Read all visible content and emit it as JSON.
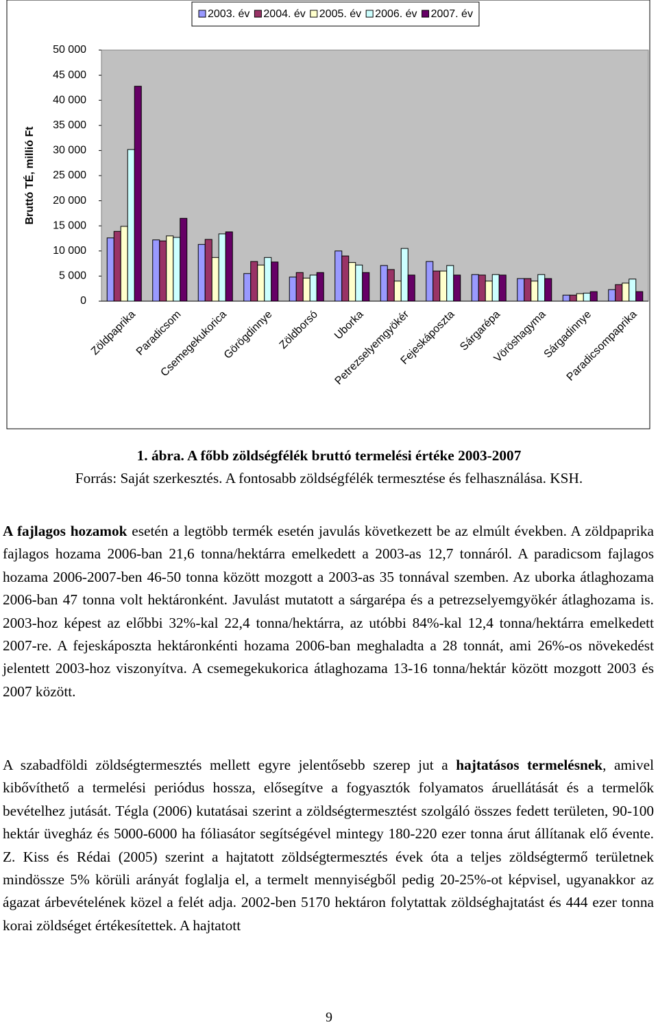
{
  "chart_data": {
    "type": "bar",
    "ylabel": "Bruttó TÉ, millió Ft",
    "categories": [
      "Zöldpaprika",
      "Paradicsom",
      "Csemegekukorica",
      "Görögdinnye",
      "Zöldborsó",
      "Uborka",
      "Petrezselyemgyökér",
      "Fejeskáposzta",
      "Sárgarépa",
      "Vöröshagyma",
      "Sárgadinnye",
      "Paradicsompaprika"
    ],
    "series": [
      {
        "name": "2003. év",
        "color": "#9999ff",
        "values": [
          12600,
          12200,
          11300,
          5500,
          4800,
          10000,
          7100,
          7900,
          5300,
          4500,
          1200,
          2300
        ]
      },
      {
        "name": "2004. év",
        "color": "#993366",
        "values": [
          13900,
          12000,
          12300,
          7900,
          5700,
          9000,
          6300,
          6000,
          5200,
          4500,
          1200,
          3300
        ]
      },
      {
        "name": "2005. év",
        "color": "#ffffcc",
        "values": [
          14900,
          13000,
          8700,
          7200,
          4600,
          7700,
          4000,
          6000,
          4000,
          4000,
          1500,
          3600
        ]
      },
      {
        "name": "2006. év",
        "color": "#ccffff",
        "values": [
          30200,
          12700,
          13400,
          8700,
          5200,
          7200,
          10500,
          7100,
          5300,
          5300,
          1600,
          4400
        ]
      },
      {
        "name": "2007. év",
        "color": "#660066",
        "values": [
          42800,
          16500,
          13800,
          7800,
          5700,
          5700,
          5200,
          5200,
          5200,
          4500,
          1900,
          1900
        ]
      }
    ],
    "ylim": [
      0,
      50000
    ],
    "yticks": [
      0,
      {
        "value": 5000,
        "label": "5 000"
      },
      {
        "value": 10000,
        "label": "10 000"
      },
      {
        "value": 15000,
        "label": "15 000"
      },
      {
        "value": 20000,
        "label": "20 000"
      },
      {
        "value": 25000,
        "label": "25 000"
      },
      {
        "value": 30000,
        "label": "30 000"
      },
      {
        "value": 35000,
        "label": "35 000"
      },
      {
        "value": 40000,
        "label": "40 000"
      },
      {
        "value": 45000,
        "label": "45 000"
      },
      {
        "value": 50000,
        "label": "50 000"
      }
    ],
    "legend": "top"
  },
  "caption": "1. ábra. A főbb zöldségfélék bruttó termelési értéke 2003-2007",
  "source": "Forrás: Saját szerkesztés. A fontosabb zöldségfélék termesztése és felhasználása. KSH.",
  "paragraphs": [
    [
      {
        "text": "A fajlagos hozamok",
        "bold": true
      },
      {
        "text": " esetén a legtöbb termék esetén javulás következett be az elmúlt években. A zöldpaprika fajlagos hozama 2006-ban 21,6 tonna/hektárra emelkedett a 2003-as 12,7 tonnáról. A paradicsom fajlagos hozama 2006-2007-ben 46-50 tonna között mozgott a 2003-as 35 tonnával szemben. Az uborka átlaghozama 2006-ban 47 tonna volt hektáronként. Javulást mutatott a sárgarépa és a petrezselyemgyökér átlaghozama is. 2003-hoz képest az előbbi 32%-kal 22,4 tonna/hektárra, az utóbbi 84%-kal 12,4 tonna/hektárra emelkedett 2007-re. A fejeskáposzta hektáronkénti hozama 2006-ban meghaladta a 28 tonnát, ami 26%-os növekedést jelentett 2003-hoz viszonyítva. A csemegekukorica átlaghozama 13-16 tonna/hektár között mozgott 2003 és 2007 között.",
        "bold": false
      }
    ],
    [
      {
        "text": "A szabadföldi zöldségtermesztés mellett egyre jelentősebb szerep jut a ",
        "bold": false
      },
      {
        "text": "hajtatásos termelésnek",
        "bold": true
      },
      {
        "text": ", amivel kibővíthető a termelési periódus hossza, elősegítve a fogyasztók folyamatos áruellátását és a termelők bevételhez jutását. Tégla (2006) kutatásai szerint a zöldségtermesztést szolgáló összes fedett területen, 90-100 hektár üvegház és 5000-6000 ha fóliasátor segítségével mintegy 180-220 ezer tonna árut állítanak elő évente. Z. Kiss és Rédai (2005) szerint a hajtatott zöldségtermesztés évek óta a teljes zöldségtermő területnek mindössze 5% körüli arányát foglalja el, a termelt mennyiségből pedig 20-25%-ot képvisel, ugyanakkor az ágazat árbevételének közel a felét adja. 2002-ben 5170 hektáron folytattak zöldséghajtatást és 444 ezer tonna korai zöldséget értékesítettek. A hajtatott",
        "bold": false
      }
    ]
  ],
  "page_number": "9"
}
